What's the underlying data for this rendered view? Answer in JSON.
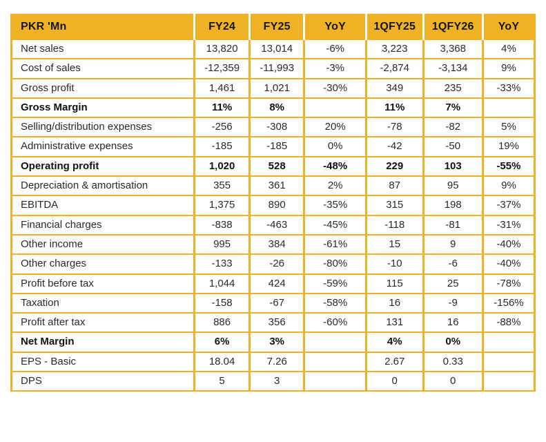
{
  "colors": {
    "accent_gold": "#F0B225",
    "border_gold": "#F0B225",
    "text": "#1f1f1f",
    "background": "#ffffff"
  },
  "chart_data": {
    "type": "table",
    "title": "Financial results table (PKR 'Mn)",
    "columns": [
      "PKR 'Mn",
      "FY24",
      "FY25",
      "YoY",
      "1QFY25",
      "1QFY26",
      "YoY"
    ],
    "column_widths_pct": [
      35.0,
      10.5,
      10.5,
      11.8,
      10.9,
      11.4,
      9.9
    ],
    "rows": [
      {
        "label": "Net sales",
        "bold": false,
        "values": [
          "13,820",
          "13,014",
          "-6%",
          "3,223",
          "3,368",
          "4%"
        ]
      },
      {
        "label": "Cost of sales",
        "bold": false,
        "values": [
          "-12,359",
          "-11,993",
          "-3%",
          "-2,874",
          "-3,134",
          "9%"
        ]
      },
      {
        "label": "Gross profit",
        "bold": false,
        "values": [
          "1,461",
          "1,021",
          "-30%",
          "349",
          "235",
          "-33%"
        ]
      },
      {
        "label": "Gross Margin",
        "bold": true,
        "values": [
          "11%",
          "8%",
          "",
          "11%",
          "7%",
          ""
        ]
      },
      {
        "label": "Selling/distribution expenses",
        "bold": false,
        "values": [
          "-256",
          "-308",
          "20%",
          "-78",
          "-82",
          "5%"
        ]
      },
      {
        "label": "Administrative expenses",
        "bold": false,
        "values": [
          "-185",
          "-185",
          "0%",
          "-42",
          "-50",
          "19%"
        ]
      },
      {
        "label": "Operating profit",
        "bold": true,
        "values": [
          "1,020",
          "528",
          "-48%",
          "229",
          "103",
          "-55%"
        ]
      },
      {
        "label": "Depreciation & amortisation",
        "bold": false,
        "values": [
          "355",
          "361",
          "2%",
          "87",
          "95",
          "9%"
        ]
      },
      {
        "label": "EBITDA",
        "bold": false,
        "values": [
          "1,375",
          "890",
          "-35%",
          "315",
          "198",
          "-37%"
        ]
      },
      {
        "label": "Financial charges",
        "bold": false,
        "values": [
          "-838",
          "-463",
          "-45%",
          "-118",
          "-81",
          "-31%"
        ]
      },
      {
        "label": "Other income",
        "bold": false,
        "values": [
          "995",
          "384",
          "-61%",
          "15",
          "9",
          "-40%"
        ]
      },
      {
        "label": "Other charges",
        "bold": false,
        "values": [
          "-133",
          "-26",
          "-80%",
          "-10",
          "-6",
          "-40%"
        ]
      },
      {
        "label": "Profit before tax",
        "bold": false,
        "values": [
          "1,044",
          "424",
          "-59%",
          "115",
          "25",
          "-78%"
        ]
      },
      {
        "label": "Taxation",
        "bold": false,
        "values": [
          "-158",
          "-67",
          "-58%",
          "16",
          "-9",
          "-156%"
        ]
      },
      {
        "label": "Profit after tax",
        "bold": false,
        "values": [
          "886",
          "356",
          "-60%",
          "131",
          "16",
          "-88%"
        ]
      },
      {
        "label": "Net Margin",
        "bold": true,
        "values": [
          "6%",
          "3%",
          "",
          "4%",
          "0%",
          ""
        ]
      },
      {
        "label": "EPS - Basic",
        "bold": false,
        "values": [
          "18.04",
          "7.26",
          "",
          "2.67",
          "0.33",
          ""
        ]
      },
      {
        "label": "DPS",
        "bold": false,
        "values": [
          "5",
          "3",
          "",
          "0",
          "0",
          ""
        ]
      }
    ]
  }
}
